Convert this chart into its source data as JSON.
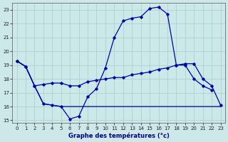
{
  "title": "Graphe des températures (°c)",
  "bg_color": "#cce8e8",
  "grid_color": "#aacccc",
  "line_color": "#0000aa",
  "xlim": [
    -0.5,
    23.5
  ],
  "ylim": [
    14.8,
    23.5
  ],
  "xticks": [
    0,
    1,
    2,
    3,
    4,
    5,
    6,
    7,
    8,
    9,
    10,
    11,
    12,
    13,
    14,
    15,
    16,
    17,
    18,
    19,
    20,
    21,
    22,
    23
  ],
  "yticks": [
    15,
    16,
    17,
    18,
    19,
    20,
    21,
    22,
    23
  ],
  "series1_x": [
    0,
    1,
    2,
    3,
    4,
    5,
    6,
    7,
    8,
    9,
    10,
    11,
    12,
    13,
    14,
    15,
    16,
    17,
    18,
    19,
    20,
    21,
    22
  ],
  "series1_y": [
    19.3,
    18.9,
    17.5,
    16.2,
    16.1,
    16.0,
    15.1,
    15.3,
    16.7,
    17.3,
    18.8,
    21.0,
    22.2,
    22.4,
    22.5,
    23.1,
    23.2,
    22.7,
    19.0,
    19.0,
    18.0,
    17.5,
    17.2
  ],
  "series2_x": [
    0,
    1,
    2,
    3,
    4,
    5,
    6,
    7,
    8,
    9,
    10,
    11,
    12,
    13,
    14,
    15,
    16,
    17,
    18,
    19,
    20,
    21,
    22,
    23
  ],
  "series2_y": [
    19.3,
    18.9,
    17.5,
    17.6,
    17.7,
    17.7,
    17.5,
    17.5,
    17.8,
    17.9,
    18.0,
    18.1,
    18.1,
    18.3,
    18.4,
    18.5,
    18.7,
    18.8,
    19.0,
    19.1,
    19.1,
    18.0,
    17.5,
    16.1
  ],
  "series3_x": [
    0,
    1,
    2,
    3,
    4,
    5,
    6,
    7,
    8,
    9,
    10,
    11,
    12,
    13,
    14,
    15,
    16,
    17,
    18,
    19,
    20,
    21,
    22,
    23
  ],
  "series3_y": [
    19.3,
    18.9,
    17.5,
    16.2,
    16.1,
    16.0,
    16.0,
    16.0,
    16.0,
    16.0,
    16.0,
    16.0,
    16.0,
    16.0,
    16.0,
    16.0,
    16.0,
    16.0,
    16.0,
    16.0,
    16.0,
    16.0,
    16.0,
    16.0
  ]
}
